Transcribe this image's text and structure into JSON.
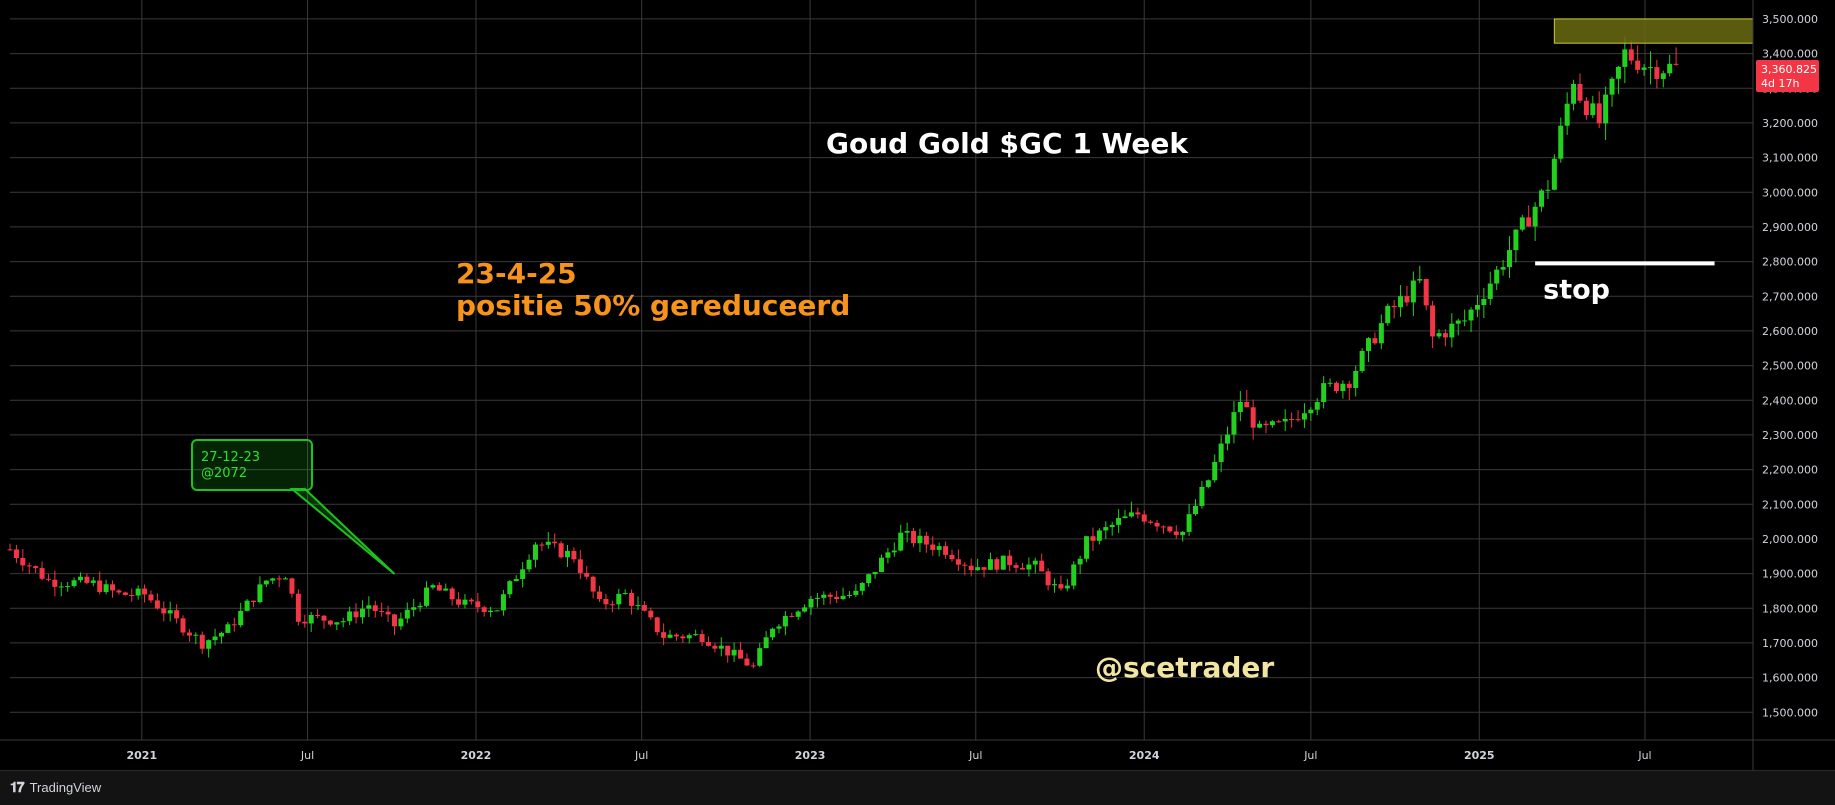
{
  "title": "Goud Gold $GC 1 Week",
  "annotation_date": "23-4-25",
  "annotation_text": "positie 50% gereduceerd",
  "stop_label": "stop",
  "watermark": "@scetrader",
  "callout": {
    "line1": "27-12-23",
    "line2": "@2072"
  },
  "price_label": {
    "price": "3,360.825",
    "timer": "4d 17h"
  },
  "footer_brand": "TradingView",
  "colors": {
    "up": "#22d11d",
    "down": "#f23645",
    "grid": "#3a3a3a",
    "title": "#ffffff",
    "annotation": "#f7931a",
    "watermark": "#f2e5a0",
    "callout": "#1ec21e",
    "zone": "#6b6b12",
    "axis_text": "#d1d4dc"
  },
  "chart_data": {
    "type": "candlestick",
    "interval": "1 Week",
    "y_ticks": [
      1500,
      1600,
      1700,
      1800,
      1900,
      2000,
      2100,
      2200,
      2300,
      2400,
      2500,
      2600,
      2700,
      2800,
      2900,
      3000,
      3100,
      3200,
      3300,
      3400,
      3500
    ],
    "y_tick_labels": [
      "1,500.000",
      "1,600.000",
      "1,700.000",
      "1,800.000",
      "1,900.000",
      "2,000.000",
      "2,100.000",
      "2,200.000",
      "2,300.000",
      "2,400.000",
      "2,500.000",
      "2,600.000",
      "2,700.000",
      "2,800.000",
      "2,900.000",
      "3,000.000",
      "3,100.000",
      "3,200.000",
      "3,300.000",
      "3,400.000",
      "3,500.000"
    ],
    "ylim": [
      1420,
      3520
    ],
    "x_ticks": [
      {
        "date": "2021-01-01",
        "label": "2021"
      },
      {
        "date": "2021-07-01",
        "label": "Jul"
      },
      {
        "date": "2022-01-01",
        "label": "2022"
      },
      {
        "date": "2022-07-01",
        "label": "Jul"
      },
      {
        "date": "2023-01-01",
        "label": "2023"
      },
      {
        "date": "2023-07-01",
        "label": "Jul"
      },
      {
        "date": "2024-01-01",
        "label": "2024"
      },
      {
        "date": "2024-07-01",
        "label": "Jul"
      },
      {
        "date": "2025-01-01",
        "label": "2025"
      },
      {
        "date": "2025-07-01",
        "label": "Jul"
      }
    ],
    "x_range": [
      "2020-08-10",
      "2025-10-27"
    ],
    "key_points": [
      [
        "2020-08-10",
        1970
      ],
      [
        "2020-09-21",
        1880
      ],
      [
        "2020-11-09",
        1870
      ],
      [
        "2020-12-07",
        1840
      ],
      [
        "2021-01-04",
        1840
      ],
      [
        "2021-03-08",
        1700
      ],
      [
        "2021-04-05",
        1740
      ],
      [
        "2021-05-17",
        1880
      ],
      [
        "2021-06-07",
        1900
      ],
      [
        "2021-06-21",
        1775
      ],
      [
        "2021-08-09",
        1765
      ],
      [
        "2021-09-06",
        1810
      ],
      [
        "2021-10-04",
        1750
      ],
      [
        "2021-11-15",
        1860
      ],
      [
        "2021-12-20",
        1810
      ],
      [
        "2022-01-24",
        1800
      ],
      [
        "2022-03-07",
        1990
      ],
      [
        "2022-04-18",
        1950
      ],
      [
        "2022-05-16",
        1810
      ],
      [
        "2022-06-13",
        1840
      ],
      [
        "2022-07-25",
        1720
      ],
      [
        "2022-09-05",
        1720
      ],
      [
        "2022-10-31",
        1630
      ],
      [
        "2022-11-21",
        1750
      ],
      [
        "2023-01-02",
        1830
      ],
      [
        "2023-02-20",
        1840
      ],
      [
        "2023-04-10",
        2010
      ],
      [
        "2023-05-29",
        1970
      ],
      [
        "2023-06-26",
        1920
      ],
      [
        "2023-08-07",
        1935
      ],
      [
        "2023-09-04",
        1920
      ],
      [
        "2023-10-02",
        1840
      ],
      [
        "2023-10-30",
        1990
      ],
      [
        "2023-12-04",
        2050
      ],
      [
        "2023-12-25",
        2072
      ],
      [
        "2024-02-12",
        2020
      ],
      [
        "2024-03-11",
        2170
      ],
      [
        "2024-04-15",
        2400
      ],
      [
        "2024-05-06",
        2310
      ],
      [
        "2024-06-03",
        2330
      ],
      [
        "2024-07-15",
        2430
      ],
      [
        "2024-08-12",
        2460
      ],
      [
        "2024-09-23",
        2650
      ],
      [
        "2024-10-28",
        2740
      ],
      [
        "2024-11-11",
        2580
      ],
      [
        "2024-12-16",
        2630
      ],
      [
        "2025-01-20",
        2770
      ],
      [
        "2025-02-17",
        2900
      ],
      [
        "2025-03-17",
        3020
      ],
      [
        "2025-04-14",
        3330
      ],
      [
        "2025-04-21",
        3280
      ],
      [
        "2025-05-12",
        3200
      ],
      [
        "2025-06-09",
        3400
      ],
      [
        "2025-07-07",
        3360
      ],
      [
        "2025-08-04",
        3360
      ]
    ],
    "stop_level": 2795,
    "stop_range": [
      "2025-03-03",
      "2025-09-15"
    ],
    "resistance_zone": {
      "low": 3430,
      "high": 3500,
      "from": "2025-03-24"
    },
    "callout_target": "2021-10-04",
    "last_price": 3360.825
  }
}
